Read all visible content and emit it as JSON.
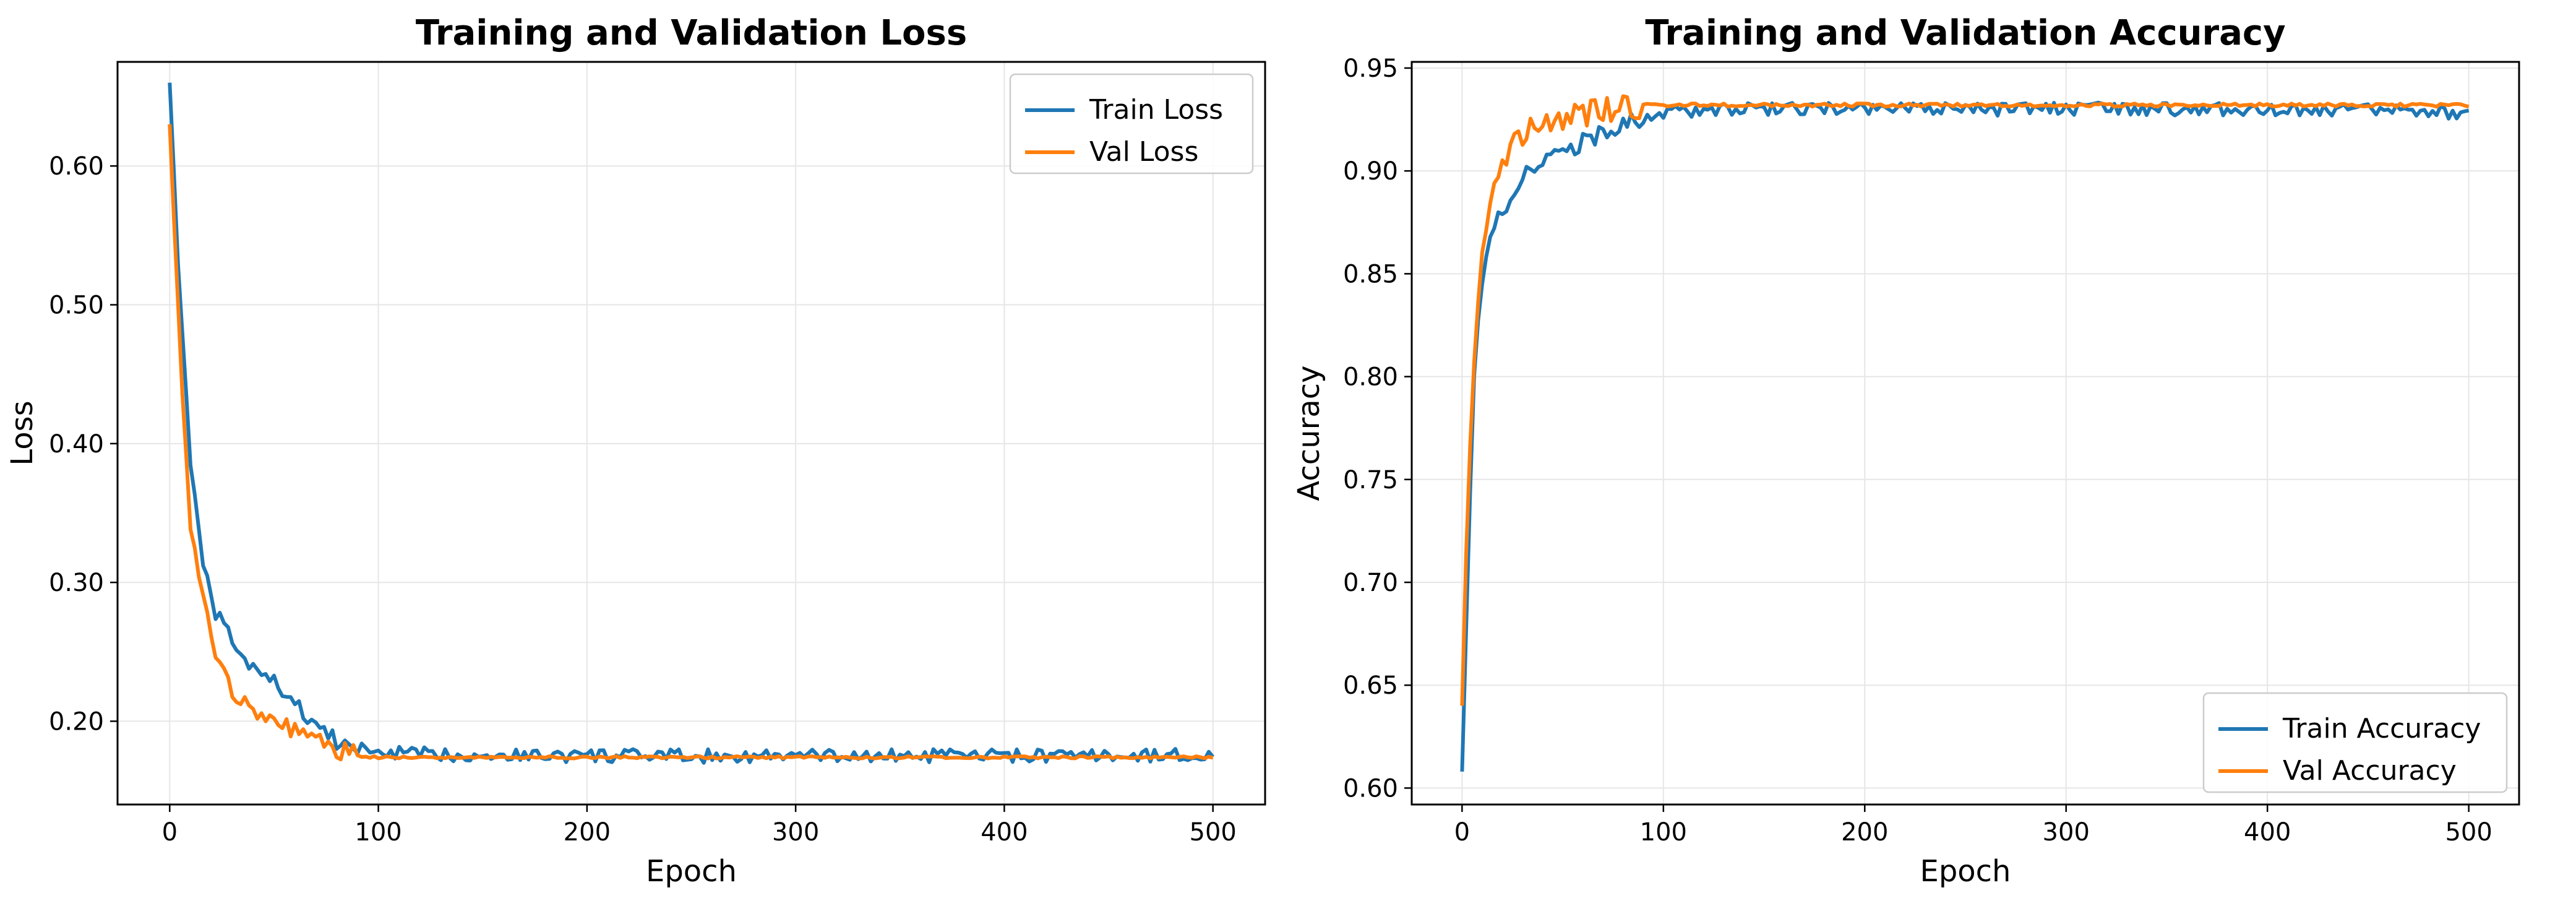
{
  "colors": {
    "train": "#1f77b4",
    "val": "#ff7f0e",
    "grid": "#e6e6e6"
  },
  "chart_data": [
    {
      "type": "line",
      "title": "Training and Validation Loss",
      "xlabel": "Epoch",
      "ylabel": "Loss",
      "xlim": [
        -25,
        525
      ],
      "ylim": [
        0.14,
        0.675
      ],
      "xticks": [
        0,
        100,
        200,
        300,
        400,
        500
      ],
      "yticks": [
        0.2,
        0.3,
        0.4,
        0.5,
        0.6
      ],
      "grid": true,
      "legend_position": "top-right",
      "series": [
        {
          "name": "Train Loss",
          "color": "#1f77b4",
          "x": [
            0,
            5,
            10,
            15,
            20,
            25,
            30,
            35,
            40,
            45,
            50,
            55,
            60,
            65,
            70,
            75,
            80,
            90,
            100,
            125,
            150,
            200,
            250,
            300,
            350,
            400,
            450,
            500
          ],
          "y": [
            0.66,
            0.5,
            0.39,
            0.32,
            0.285,
            0.27,
            0.258,
            0.245,
            0.238,
            0.232,
            0.228,
            0.222,
            0.212,
            0.205,
            0.198,
            0.192,
            0.185,
            0.18,
            0.178,
            0.176,
            0.176,
            0.175,
            0.175,
            0.175,
            0.175,
            0.175,
            0.175,
            0.176
          ]
        },
        {
          "name": "Val Loss",
          "color": "#ff7f0e",
          "x": [
            0,
            5,
            10,
            15,
            20,
            25,
            30,
            35,
            40,
            45,
            50,
            55,
            60,
            65,
            70,
            75,
            80,
            90,
            100,
            125,
            150,
            200,
            250,
            300,
            350,
            400,
            450,
            500
          ],
          "y": [
            0.63,
            0.46,
            0.34,
            0.29,
            0.26,
            0.24,
            0.225,
            0.215,
            0.21,
            0.205,
            0.2,
            0.196,
            0.192,
            0.189,
            0.187,
            0.184,
            0.178,
            0.175,
            0.174,
            0.174,
            0.174,
            0.174,
            0.174,
            0.174,
            0.174,
            0.174,
            0.174,
            0.174
          ]
        }
      ]
    },
    {
      "type": "line",
      "title": "Training and Validation Accuracy",
      "xlabel": "Epoch",
      "ylabel": "Accuracy",
      "xlim": [
        -25,
        525
      ],
      "ylim": [
        0.592,
        0.953
      ],
      "xticks": [
        0,
        100,
        200,
        300,
        400,
        500
      ],
      "yticks": [
        0.6,
        0.65,
        0.7,
        0.75,
        0.8,
        0.85,
        0.9,
        0.95
      ],
      "grid": true,
      "legend_position": "bottom-right",
      "series": [
        {
          "name": "Train Accuracy",
          "color": "#1f77b4",
          "x": [
            0,
            3,
            6,
            10,
            15,
            20,
            25,
            30,
            40,
            50,
            60,
            70,
            80,
            90,
            100,
            125,
            150,
            200,
            250,
            300,
            350,
            400,
            450,
            500
          ],
          "y": [
            0.608,
            0.71,
            0.8,
            0.845,
            0.87,
            0.882,
            0.89,
            0.896,
            0.903,
            0.908,
            0.914,
            0.918,
            0.922,
            0.926,
            0.928,
            0.93,
            0.93,
            0.93,
            0.93,
            0.93,
            0.93,
            0.93,
            0.93,
            0.928
          ]
        },
        {
          "name": "Val Accuracy",
          "color": "#ff7f0e",
          "x": [
            0,
            3,
            6,
            10,
            15,
            20,
            25,
            30,
            40,
            50,
            60,
            70,
            80,
            90,
            100,
            125,
            150,
            200,
            250,
            300,
            350,
            400,
            450,
            500
          ],
          "y": [
            0.64,
            0.75,
            0.81,
            0.865,
            0.895,
            0.905,
            0.912,
            0.918,
            0.922,
            0.925,
            0.927,
            0.929,
            0.931,
            0.932,
            0.932,
            0.932,
            0.932,
            0.932,
            0.932,
            0.932,
            0.932,
            0.932,
            0.932,
            0.932
          ]
        }
      ]
    }
  ]
}
